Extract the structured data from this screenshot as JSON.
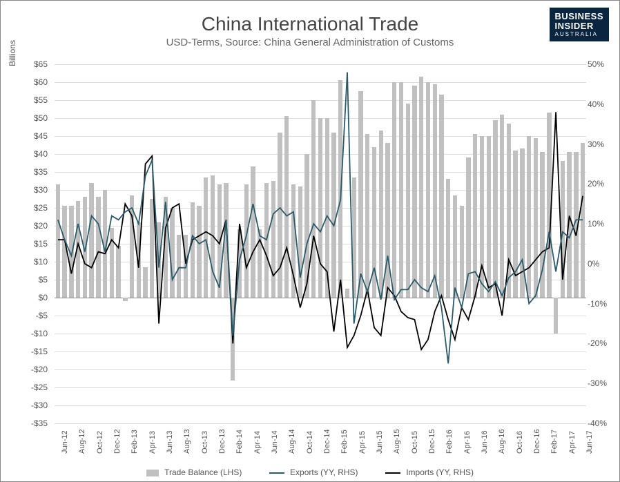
{
  "title": "China International Trade",
  "subtitle": "USD-Terms, Source: China General Administration of Customs",
  "logo": {
    "line1": "BUSINESS",
    "line2": "INSIDER",
    "sub": "AUSTRALIA"
  },
  "y_left": {
    "label": "Billions",
    "min": -35,
    "max": 65,
    "step": 5,
    "ticks": [
      "$65",
      "$60",
      "$55",
      "$50",
      "$45",
      "$40",
      "$35",
      "$30",
      "$25",
      "$20",
      "$15",
      "$10",
      "$5",
      "$0",
      "-$5",
      "-$10",
      "-$15",
      "-$20",
      "-$25",
      "-$30",
      "-$35"
    ]
  },
  "y_right": {
    "min": -40,
    "max": 50,
    "step": 10,
    "ticks": [
      "50%",
      "40%",
      "30%",
      "20%",
      "10%",
      "0%",
      "-10%",
      "-20%",
      "-30%",
      "-40%"
    ]
  },
  "x_labels": [
    "Jun-12",
    "Aug-12",
    "Oct-12",
    "Dec-12",
    "Feb-13",
    "Apr-13",
    "Jun-13",
    "Aug-13",
    "Oct-13",
    "Dec-13",
    "Feb-14",
    "Apr-14",
    "Jun-14",
    "Aug-14",
    "Oct-14",
    "Dec-14",
    "Feb-15",
    "Apr-15",
    "Jun-15",
    "Aug-15",
    "Oct-15",
    "Dec-15",
    "Feb-16",
    "Apr-16",
    "Jun-16",
    "Aug-16",
    "Oct-16",
    "Dec-16",
    "Feb-17",
    "Apr-17",
    "Jun-17"
  ],
  "trade_balance": [
    31.5,
    25.5,
    25.5,
    27,
    28,
    32,
    28,
    30,
    19.5,
    14.5,
    -1,
    28.5,
    21,
    8.5,
    27.5,
    21,
    28,
    25,
    17.5,
    17.5,
    26.5,
    25.5,
    33.5,
    34,
    31.5,
    32,
    -23,
    19,
    31.5,
    36.5,
    19,
    32,
    32.5,
    46,
    50.5,
    31.5,
    31,
    40,
    55,
    50,
    50,
    46,
    60.5,
    2.5,
    33.5,
    57.5,
    45.5,
    42,
    46.5,
    43,
    60,
    60,
    54,
    59,
    61.5,
    60,
    59.5,
    56.5,
    33,
    28.5,
    25.5,
    39,
    45.5,
    45,
    45,
    49.5,
    51,
    48.5,
    41,
    41.5,
    45,
    44.5,
    40.5,
    51.5,
    -10,
    38,
    40.5,
    40.5,
    43
  ],
  "exports": [
    11,
    6,
    2,
    10,
    3,
    12,
    10,
    3,
    12,
    11,
    13,
    14,
    10,
    22,
    26,
    -1,
    15.5,
    -4,
    -1,
    -1,
    7,
    5,
    6,
    -2,
    -6,
    11,
    -18,
    1,
    7,
    15,
    7,
    6,
    12.5,
    14,
    12,
    13,
    -3.5,
    5,
    10,
    8,
    12,
    9.5,
    16,
    48,
    -15,
    -2.5,
    -7,
    -1,
    -9,
    2,
    -9,
    -6.5,
    -6.5,
    -4,
    -6,
    -7,
    -3,
    -11,
    -25,
    -6,
    -11,
    -2.5,
    -2,
    -5,
    -7,
    -4.5,
    -8,
    -3.5,
    -2,
    1,
    -10,
    -8,
    -1.5,
    8,
    -2,
    8,
    6.5,
    11,
    11
  ],
  "imports": [
    6,
    6,
    -2.5,
    5,
    0,
    -1,
    3,
    2.5,
    6,
    4,
    15,
    12,
    -1,
    25,
    27,
    -15,
    9,
    14,
    15,
    0,
    6,
    7,
    8,
    7,
    5,
    11,
    -20,
    10,
    -1,
    3,
    6,
    2,
    -3,
    -1,
    4,
    -3,
    -11,
    -5,
    7,
    0,
    -2,
    -17,
    -4,
    -21,
    -18,
    -13,
    -6.5,
    -16,
    -18,
    -6,
    -8,
    -12,
    -13.5,
    -14,
    -21.5,
    -19,
    -12,
    -8,
    -14,
    -19,
    -11,
    -14,
    -8,
    -0.5,
    -6,
    -5,
    -13,
    1,
    -3,
    -2,
    -1,
    1,
    3,
    4,
    38,
    -4,
    12,
    7,
    17
  ],
  "colors": {
    "bar": "#c0c0c0",
    "exports": "#2a5a6a",
    "imports": "#000000",
    "grid": "#dcdcdc",
    "axis": "#888888",
    "background": "#ffffff"
  },
  "legend": {
    "bar": "Trade Balance (LHS)",
    "exports": "Exports (YY, RHS)",
    "imports": "Imports (YY, RHS)"
  },
  "line_width": 1.8
}
